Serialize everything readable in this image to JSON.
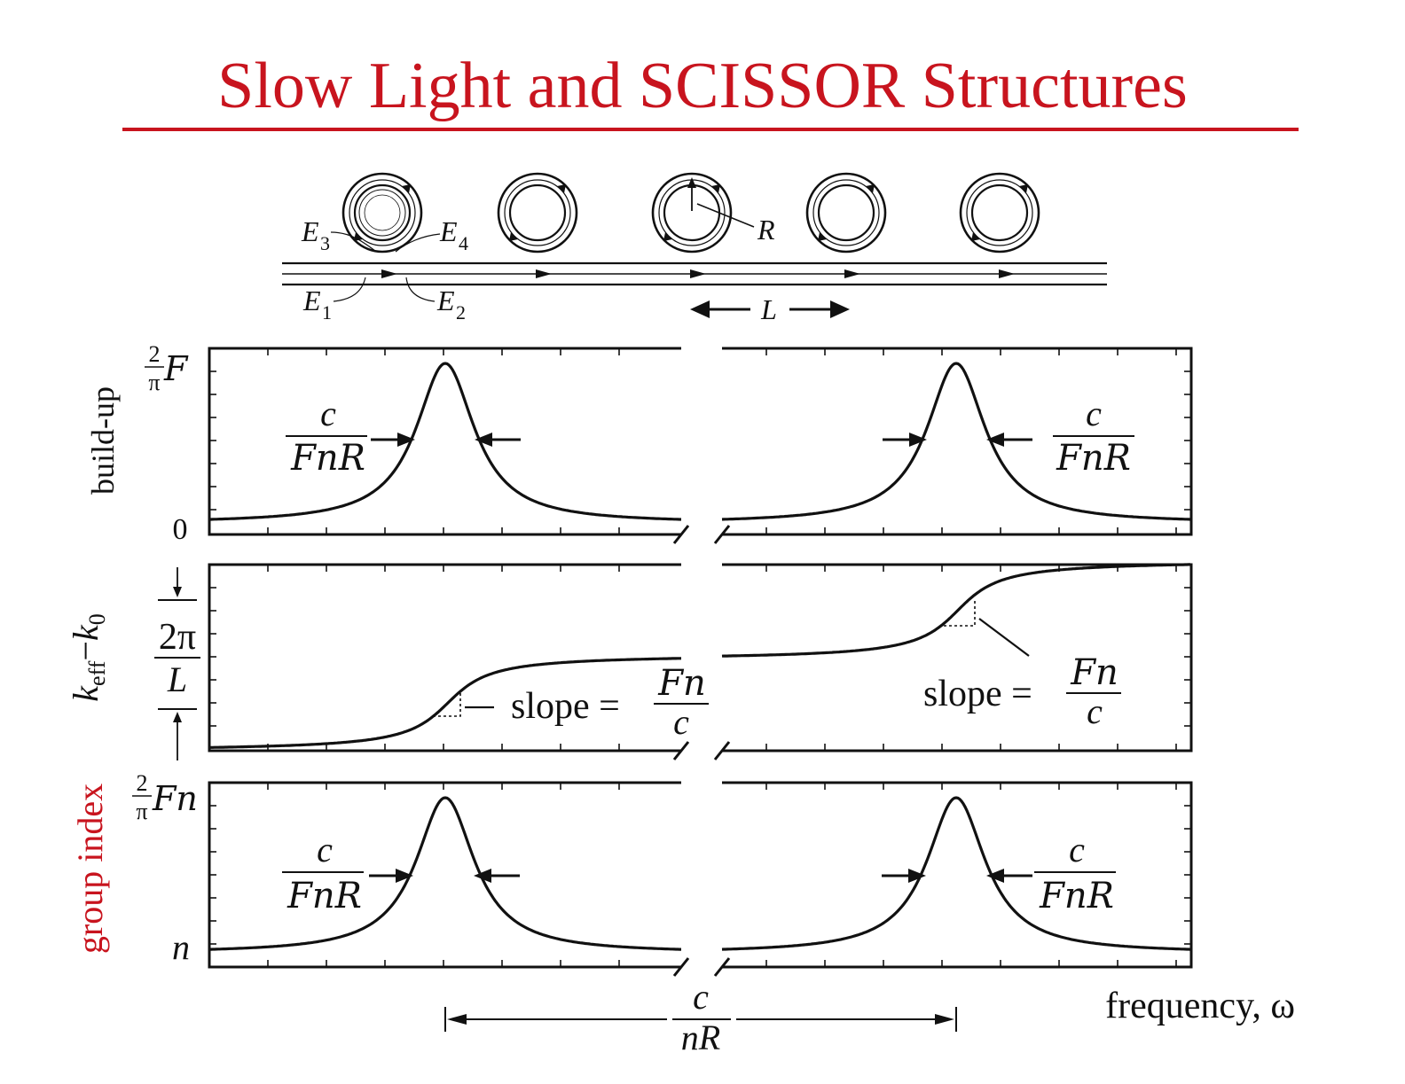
{
  "title": "Slow Light and SCISSOR Structures",
  "colors": {
    "title": "#c8141e",
    "ink": "#111111",
    "group_index_label": "#c8141e"
  },
  "device": {
    "field_labels": [
      {
        "base": "E",
        "sub": "3"
      },
      {
        "base": "E",
        "sub": "4"
      },
      {
        "base": "E",
        "sub": "1"
      },
      {
        "base": "E",
        "sub": "2"
      }
    ],
    "radius_label": "R",
    "spacing_label": "L"
  },
  "panels": {
    "buildup": {
      "ylabel": "build-up",
      "ytick_top_num": "2",
      "ytick_top_den": "π",
      "ytick_top_sym": "F",
      "ytick_bottom": "0",
      "fwhm_num": "c",
      "fwhm_den": "FnR"
    },
    "keff": {
      "ylabel_k": "k",
      "ylabel_sub1": "eff",
      "ylabel_minus": "−",
      "ylabel_k0": "k",
      "ylabel_sub2": "0",
      "step_num": "2π",
      "step_den": "L",
      "slope_text": "slope =",
      "slope_num": "Fn",
      "slope_den": "c"
    },
    "group": {
      "ylabel": "group index",
      "ytick_top_num": "2",
      "ytick_top_den": "π",
      "ytick_top_sym": "Fn",
      "ytick_bottom": "n",
      "fwhm_num": "c",
      "fwhm_den": "FnR"
    }
  },
  "xaxis": {
    "label": "frequency, ω",
    "period_num": "c",
    "period_den": "nR"
  }
}
